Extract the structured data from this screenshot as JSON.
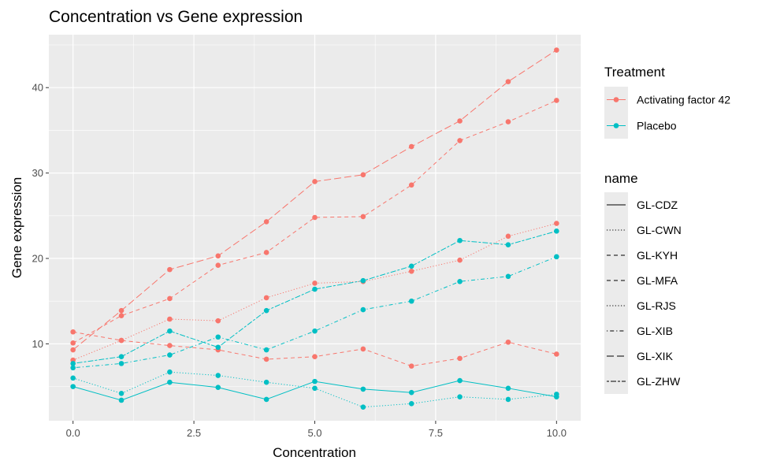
{
  "chart_data": {
    "type": "line",
    "title": "Concentration vs Gene expression",
    "xlabel": "Concentration",
    "ylabel": "Gene expression",
    "xlim": [
      -0.5,
      10.5
    ],
    "ylim": [
      1.0,
      46.2
    ],
    "x_ticks": [
      0.0,
      2.5,
      5.0,
      7.5,
      10.0
    ],
    "x_tick_labels": [
      "0.0",
      "2.5",
      "5.0",
      "7.5",
      "10.0"
    ],
    "y_ticks": [
      10,
      20,
      30,
      40
    ],
    "y_tick_labels": [
      "10",
      "20",
      "30",
      "40"
    ],
    "grid": true,
    "legend_position": "right",
    "colors": {
      "Activating factor 42": "#F8766D",
      "Placebo": "#00BFC4"
    },
    "legend_color": {
      "title": "Treatment",
      "entries": [
        "Activating factor 42",
        "Placebo"
      ]
    },
    "legend_linetype": {
      "title": "name",
      "entries": [
        "GL-CDZ",
        "GL-CWN",
        "GL-KYH",
        "GL-MFA",
        "GL-RJS",
        "GL-XIB",
        "GL-XIK",
        "GL-ZHW"
      ]
    },
    "linetypes": {
      "GL-CDZ": "solid",
      "GL-CWN": "dotted",
      "GL-KYH": "dashed",
      "GL-MFA": "dashed",
      "GL-RJS": "dotted",
      "GL-XIB": "dotdash",
      "GL-XIK": "longdash",
      "GL-ZHW": "twodash"
    },
    "x": [
      0,
      1,
      2,
      3,
      4,
      5,
      6,
      7,
      8,
      9,
      10
    ],
    "series": [
      {
        "name": "GL-XIK",
        "treatment": "Activating factor 42",
        "values": [
          9.3,
          13.9,
          18.7,
          20.3,
          24.3,
          29.0,
          29.8,
          33.1,
          36.1,
          40.7,
          44.4
        ]
      },
      {
        "name": "GL-KYH",
        "treatment": "Activating factor 42",
        "values": [
          10.1,
          13.3,
          15.3,
          19.2,
          20.7,
          24.8,
          24.9,
          28.6,
          33.8,
          36.0,
          38.5
        ]
      },
      {
        "name": "GL-CWN",
        "treatment": "Activating factor 42",
        "values": [
          8.1,
          10.4,
          12.9,
          12.7,
          15.4,
          17.1,
          17.3,
          18.5,
          19.8,
          22.6,
          24.1
        ]
      },
      {
        "name": "GL-MFA",
        "treatment": "Activating factor 42",
        "values": [
          11.4,
          10.4,
          9.8,
          9.3,
          8.2,
          8.5,
          9.4,
          7.4,
          8.3,
          10.2,
          8.8
        ]
      },
      {
        "name": "GL-ZHW",
        "treatment": "Placebo",
        "values": [
          7.7,
          8.5,
          11.5,
          9.6,
          13.9,
          16.4,
          17.4,
          19.1,
          22.1,
          21.6,
          23.2
        ]
      },
      {
        "name": "GL-XIB",
        "treatment": "Placebo",
        "values": [
          7.2,
          7.7,
          8.7,
          10.8,
          9.3,
          11.5,
          14.0,
          15.0,
          17.3,
          17.9,
          20.2
        ]
      },
      {
        "name": "GL-RJS",
        "treatment": "Placebo",
        "values": [
          6.0,
          4.2,
          6.7,
          6.3,
          5.5,
          4.8,
          2.6,
          3.0,
          3.8,
          3.5,
          4.1
        ]
      },
      {
        "name": "GL-CDZ",
        "treatment": "Placebo",
        "values": [
          5.0,
          3.4,
          5.5,
          4.9,
          3.5,
          5.6,
          4.7,
          4.3,
          5.7,
          4.8,
          3.8
        ]
      }
    ]
  }
}
